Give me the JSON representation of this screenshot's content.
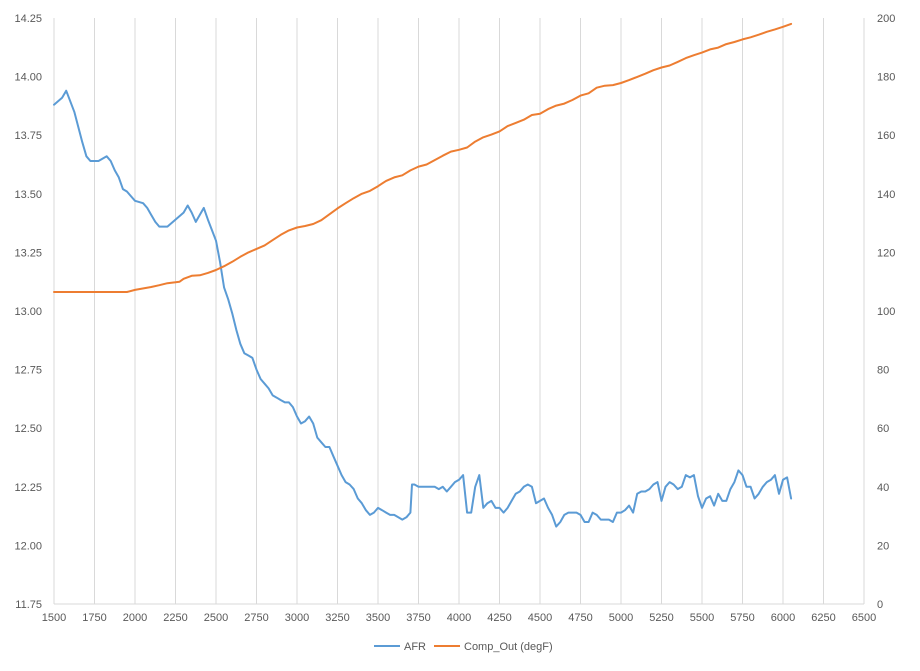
{
  "chart_data": {
    "type": "line",
    "title": "",
    "xlabel": "",
    "ylabel": "",
    "y2label": "",
    "xlim": [
      1500,
      6500
    ],
    "ylim": [
      11.75,
      14.25
    ],
    "y2lim": [
      0,
      200
    ],
    "x_ticks": [
      "1500",
      "1750",
      "2000",
      "2250",
      "2500",
      "2750",
      "3000",
      "3250",
      "3500",
      "3750",
      "4000",
      "4250",
      "4500",
      "4750",
      "5000",
      "5250",
      "5500",
      "5750",
      "6000",
      "6250",
      "6500"
    ],
    "y_ticks": [
      "11.75",
      "12.00",
      "12.25",
      "12.50",
      "12.75",
      "13.00",
      "13.25",
      "13.50",
      "13.75",
      "14.00",
      "14.25"
    ],
    "y2_ticks": [
      "0",
      "20",
      "40",
      "60",
      "80",
      "100",
      "120",
      "140",
      "160",
      "180",
      "200"
    ],
    "grid": "vertical",
    "legend_position": "bottom",
    "series": [
      {
        "name": "AFR",
        "axis": "left",
        "color": "#5b9bd5",
        "points": [
          [
            1500,
            13.88
          ],
          [
            1550,
            13.91
          ],
          [
            1575,
            13.94
          ],
          [
            1625,
            13.85
          ],
          [
            1675,
            13.72
          ],
          [
            1700,
            13.66
          ],
          [
            1725,
            13.64
          ],
          [
            1775,
            13.64
          ],
          [
            1800,
            13.65
          ],
          [
            1825,
            13.66
          ],
          [
            1850,
            13.64
          ],
          [
            1875,
            13.6
          ],
          [
            1900,
            13.57
          ],
          [
            1925,
            13.52
          ],
          [
            1950,
            13.51
          ],
          [
            1975,
            13.49
          ],
          [
            2000,
            13.47
          ],
          [
            2050,
            13.46
          ],
          [
            2075,
            13.44
          ],
          [
            2100,
            13.41
          ],
          [
            2125,
            13.38
          ],
          [
            2150,
            13.36
          ],
          [
            2200,
            13.36
          ],
          [
            2250,
            13.39
          ],
          [
            2300,
            13.42
          ],
          [
            2325,
            13.45
          ],
          [
            2350,
            13.42
          ],
          [
            2375,
            13.38
          ],
          [
            2400,
            13.41
          ],
          [
            2425,
            13.44
          ],
          [
            2450,
            13.39
          ],
          [
            2500,
            13.3
          ],
          [
            2525,
            13.21
          ],
          [
            2550,
            13.1
          ],
          [
            2575,
            13.05
          ],
          [
            2600,
            12.99
          ],
          [
            2625,
            12.92
          ],
          [
            2650,
            12.86
          ],
          [
            2675,
            12.82
          ],
          [
            2700,
            12.81
          ],
          [
            2725,
            12.8
          ],
          [
            2750,
            12.75
          ],
          [
            2775,
            12.71
          ],
          [
            2800,
            12.69
          ],
          [
            2825,
            12.67
          ],
          [
            2850,
            12.64
          ],
          [
            2875,
            12.63
          ],
          [
            2900,
            12.62
          ],
          [
            2925,
            12.61
          ],
          [
            2950,
            12.61
          ],
          [
            2975,
            12.59
          ],
          [
            3000,
            12.55
          ],
          [
            3025,
            12.52
          ],
          [
            3050,
            12.53
          ],
          [
            3075,
            12.55
          ],
          [
            3100,
            12.52
          ],
          [
            3125,
            12.46
          ],
          [
            3150,
            12.44
          ],
          [
            3175,
            12.42
          ],
          [
            3200,
            12.42
          ],
          [
            3225,
            12.38
          ],
          [
            3250,
            12.34
          ],
          [
            3275,
            12.3
          ],
          [
            3300,
            12.27
          ],
          [
            3325,
            12.26
          ],
          [
            3350,
            12.24
          ],
          [
            3375,
            12.2
          ],
          [
            3400,
            12.18
          ],
          [
            3425,
            12.15
          ],
          [
            3450,
            12.13
          ],
          [
            3475,
            12.14
          ],
          [
            3500,
            12.16
          ],
          [
            3525,
            12.15
          ],
          [
            3550,
            12.14
          ],
          [
            3575,
            12.13
          ],
          [
            3600,
            12.13
          ],
          [
            3625,
            12.12
          ],
          [
            3650,
            12.11
          ],
          [
            3675,
            12.12
          ],
          [
            3700,
            12.14
          ],
          [
            3710,
            12.26
          ],
          [
            3725,
            12.26
          ],
          [
            3750,
            12.25
          ],
          [
            3775,
            12.25
          ],
          [
            3800,
            12.25
          ],
          [
            3825,
            12.25
          ],
          [
            3850,
            12.25
          ],
          [
            3875,
            12.24
          ],
          [
            3900,
            12.25
          ],
          [
            3925,
            12.23
          ],
          [
            3950,
            12.25
          ],
          [
            3975,
            12.27
          ],
          [
            4000,
            12.28
          ],
          [
            4025,
            12.3
          ],
          [
            4050,
            12.14
          ],
          [
            4075,
            12.14
          ],
          [
            4100,
            12.25
          ],
          [
            4125,
            12.3
          ],
          [
            4150,
            12.16
          ],
          [
            4175,
            12.18
          ],
          [
            4200,
            12.19
          ],
          [
            4225,
            12.16
          ],
          [
            4250,
            12.16
          ],
          [
            4275,
            12.14
          ],
          [
            4300,
            12.16
          ],
          [
            4325,
            12.19
          ],
          [
            4350,
            12.22
          ],
          [
            4375,
            12.23
          ],
          [
            4400,
            12.25
          ],
          [
            4425,
            12.26
          ],
          [
            4450,
            12.25
          ],
          [
            4475,
            12.18
          ],
          [
            4500,
            12.19
          ],
          [
            4525,
            12.2
          ],
          [
            4550,
            12.16
          ],
          [
            4575,
            12.13
          ],
          [
            4600,
            12.08
          ],
          [
            4625,
            12.1
          ],
          [
            4650,
            12.13
          ],
          [
            4675,
            12.14
          ],
          [
            4700,
            12.14
          ],
          [
            4725,
            12.14
          ],
          [
            4750,
            12.13
          ],
          [
            4775,
            12.1
          ],
          [
            4800,
            12.1
          ],
          [
            4825,
            12.14
          ],
          [
            4850,
            12.13
          ],
          [
            4875,
            12.11
          ],
          [
            4900,
            12.11
          ],
          [
            4925,
            12.11
          ],
          [
            4950,
            12.1
          ],
          [
            4975,
            12.14
          ],
          [
            5000,
            12.14
          ],
          [
            5025,
            12.15
          ],
          [
            5050,
            12.17
          ],
          [
            5075,
            12.14
          ],
          [
            5100,
            12.22
          ],
          [
            5125,
            12.23
          ],
          [
            5150,
            12.23
          ],
          [
            5175,
            12.24
          ],
          [
            5200,
            12.26
          ],
          [
            5225,
            12.27
          ],
          [
            5250,
            12.19
          ],
          [
            5275,
            12.25
          ],
          [
            5300,
            12.27
          ],
          [
            5325,
            12.26
          ],
          [
            5350,
            12.24
          ],
          [
            5375,
            12.25
          ],
          [
            5400,
            12.3
          ],
          [
            5425,
            12.29
          ],
          [
            5450,
            12.3
          ],
          [
            5475,
            12.21
          ],
          [
            5500,
            12.16
          ],
          [
            5525,
            12.2
          ],
          [
            5550,
            12.21
          ],
          [
            5575,
            12.17
          ],
          [
            5600,
            12.22
          ],
          [
            5625,
            12.19
          ],
          [
            5650,
            12.19
          ],
          [
            5675,
            12.24
          ],
          [
            5700,
            12.27
          ],
          [
            5725,
            12.32
          ],
          [
            5750,
            12.3
          ],
          [
            5775,
            12.25
          ],
          [
            5800,
            12.25
          ],
          [
            5825,
            12.2
          ],
          [
            5850,
            12.22
          ],
          [
            5875,
            12.25
          ],
          [
            5900,
            12.27
          ],
          [
            5925,
            12.28
          ],
          [
            5950,
            12.3
          ],
          [
            5975,
            12.22
          ],
          [
            6000,
            12.28
          ],
          [
            6025,
            12.29
          ],
          [
            6050,
            12.2
          ]
        ]
      },
      {
        "name": "Comp_Out (degF)",
        "axis": "right",
        "color": "#ed7d31",
        "points": [
          [
            1500,
            106.5
          ],
          [
            1750,
            106.5
          ],
          [
            1950,
            106.5
          ],
          [
            2000,
            107.2
          ],
          [
            2100,
            108.2
          ],
          [
            2150,
            108.8
          ],
          [
            2200,
            109.5
          ],
          [
            2250,
            109.8
          ],
          [
            2275,
            110.0
          ],
          [
            2300,
            111.0
          ],
          [
            2350,
            112.0
          ],
          [
            2400,
            112.2
          ],
          [
            2450,
            113.0
          ],
          [
            2500,
            114.0
          ],
          [
            2550,
            115.3
          ],
          [
            2600,
            116.8
          ],
          [
            2650,
            118.5
          ],
          [
            2700,
            120.0
          ],
          [
            2750,
            121.2
          ],
          [
            2800,
            122.4
          ],
          [
            2850,
            124.2
          ],
          [
            2900,
            126.0
          ],
          [
            2950,
            127.5
          ],
          [
            3000,
            128.5
          ],
          [
            3050,
            129.0
          ],
          [
            3100,
            129.7
          ],
          [
            3150,
            131.0
          ],
          [
            3200,
            133.0
          ],
          [
            3250,
            135.0
          ],
          [
            3300,
            136.8
          ],
          [
            3350,
            138.5
          ],
          [
            3400,
            140.0
          ],
          [
            3450,
            141.0
          ],
          [
            3500,
            142.6
          ],
          [
            3550,
            144.4
          ],
          [
            3600,
            145.6
          ],
          [
            3650,
            146.3
          ],
          [
            3700,
            148.0
          ],
          [
            3750,
            149.3
          ],
          [
            3800,
            150.0
          ],
          [
            3850,
            151.5
          ],
          [
            3900,
            153.0
          ],
          [
            3950,
            154.4
          ],
          [
            4000,
            155.0
          ],
          [
            4050,
            155.8
          ],
          [
            4100,
            157.8
          ],
          [
            4150,
            159.3
          ],
          [
            4200,
            160.2
          ],
          [
            4250,
            161.3
          ],
          [
            4300,
            163.1
          ],
          [
            4350,
            164.2
          ],
          [
            4400,
            165.3
          ],
          [
            4450,
            166.9
          ],
          [
            4500,
            167.3
          ],
          [
            4550,
            168.9
          ],
          [
            4600,
            170.1
          ],
          [
            4650,
            170.8
          ],
          [
            4700,
            172.0
          ],
          [
            4750,
            173.5
          ],
          [
            4800,
            174.3
          ],
          [
            4850,
            176.2
          ],
          [
            4900,
            176.9
          ],
          [
            4950,
            177.1
          ],
          [
            5000,
            177.8
          ],
          [
            5050,
            178.8
          ],
          [
            5100,
            179.9
          ],
          [
            5150,
            181.0
          ],
          [
            5200,
            182.2
          ],
          [
            5250,
            183.1
          ],
          [
            5300,
            183.8
          ],
          [
            5350,
            185.0
          ],
          [
            5400,
            186.3
          ],
          [
            5450,
            187.3
          ],
          [
            5500,
            188.2
          ],
          [
            5550,
            189.3
          ],
          [
            5600,
            189.9
          ],
          [
            5650,
            191.1
          ],
          [
            5700,
            191.8
          ],
          [
            5750,
            192.7
          ],
          [
            5800,
            193.4
          ],
          [
            5850,
            194.3
          ],
          [
            5900,
            195.3
          ],
          [
            5950,
            196.1
          ],
          [
            6000,
            197.0
          ],
          [
            6050,
            198.0
          ]
        ]
      }
    ]
  }
}
